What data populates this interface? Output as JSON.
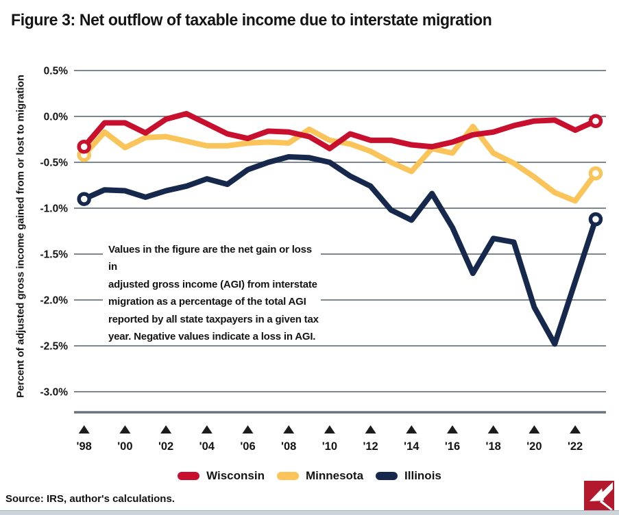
{
  "title": "Figure 3: Net outflow of taxable income due to interstate migration",
  "source": "Source: IRS, author's calculations.",
  "annotation": {
    "lines": [
      "Values in the figure are the net gain or loss in",
      "adjusted gross income (AGI) from interstate",
      "migration as a percentage of the total AGI",
      "reported by all state taxpayers in a given tax",
      "year. Negative values indicate a loss in AGI."
    ]
  },
  "legend": {
    "items": [
      {
        "label": "Wisconsin",
        "color": "#C8102E"
      },
      {
        "label": "Minnesota",
        "color": "#FBC45A"
      },
      {
        "label": "Illinois",
        "color": "#16294C"
      }
    ]
  },
  "chart_data": {
    "type": "line",
    "title": "Figure 3: Net outflow of taxable income due to interstate migration",
    "xlabel": "",
    "ylabel": "Percent of adjusted gross income gained from or lost to migration",
    "ylim": [
      -3.0,
      0.5
    ],
    "grid": "horizontal",
    "legend_position": "bottom",
    "endpoint_markers": "open-circle",
    "x": [
      1998,
      1999,
      2000,
      2001,
      2002,
      2003,
      2004,
      2005,
      2006,
      2007,
      2008,
      2009,
      2010,
      2011,
      2012,
      2013,
      2014,
      2015,
      2016,
      2017,
      2018,
      2019,
      2020,
      2021,
      2022,
      2023
    ],
    "x_ticks": [
      {
        "label": "'98",
        "year": 1998
      },
      {
        "label": "'00",
        "year": 2000
      },
      {
        "label": "'02",
        "year": 2002
      },
      {
        "label": "'04",
        "year": 2004
      },
      {
        "label": "'06",
        "year": 2006
      },
      {
        "label": "'08",
        "year": 2008
      },
      {
        "label": "'10",
        "year": 2010
      },
      {
        "label": "'12",
        "year": 2012
      },
      {
        "label": "'14",
        "year": 2014
      },
      {
        "label": "'16",
        "year": 2016
      },
      {
        "label": "'18",
        "year": 2018
      },
      {
        "label": "'20",
        "year": 2020
      },
      {
        "label": "'22",
        "year": 2022
      }
    ],
    "y_ticks": [
      {
        "label": "0.5%",
        "value": 0.5
      },
      {
        "label": "0.0%",
        "value": 0.0
      },
      {
        "label": "-0.5%",
        "value": -0.5
      },
      {
        "label": "-1.0%",
        "value": -1.0
      },
      {
        "label": "-1.5%",
        "value": -1.5
      },
      {
        "label": "-2.0%",
        "value": -2.0
      },
      {
        "label": "-2.5%",
        "value": -2.5
      },
      {
        "label": "-3.0%",
        "value": -3.0
      }
    ],
    "series": [
      {
        "name": "Wisconsin",
        "color": "#C8102E",
        "values": [
          -0.33,
          -0.07,
          -0.07,
          -0.18,
          -0.03,
          0.03,
          -0.08,
          -0.19,
          -0.24,
          -0.16,
          -0.17,
          -0.22,
          -0.35,
          -0.19,
          -0.26,
          -0.26,
          -0.31,
          -0.33,
          -0.28,
          -0.2,
          -0.17,
          -0.1,
          -0.05,
          -0.04,
          -0.15,
          -0.05
        ]
      },
      {
        "name": "Minnesota",
        "color": "#FBC45A",
        "values": [
          -0.42,
          -0.17,
          -0.34,
          -0.23,
          -0.22,
          -0.27,
          -0.32,
          -0.32,
          -0.29,
          -0.28,
          -0.29,
          -0.14,
          -0.26,
          -0.3,
          -0.38,
          -0.5,
          -0.6,
          -0.35,
          -0.4,
          -0.11,
          -0.4,
          -0.51,
          -0.66,
          -0.83,
          -0.92,
          -0.62
        ]
      },
      {
        "name": "Illinois",
        "color": "#16294C",
        "values": [
          -0.9,
          -0.8,
          -0.81,
          -0.88,
          -0.81,
          -0.76,
          -0.68,
          -0.74,
          -0.58,
          -0.5,
          -0.44,
          -0.45,
          -0.5,
          -0.65,
          -0.76,
          -1.02,
          -1.13,
          -0.84,
          -1.21,
          -1.71,
          -1.33,
          -1.37,
          -2.08,
          -2.48,
          -1.8,
          -1.12
        ]
      }
    ]
  }
}
